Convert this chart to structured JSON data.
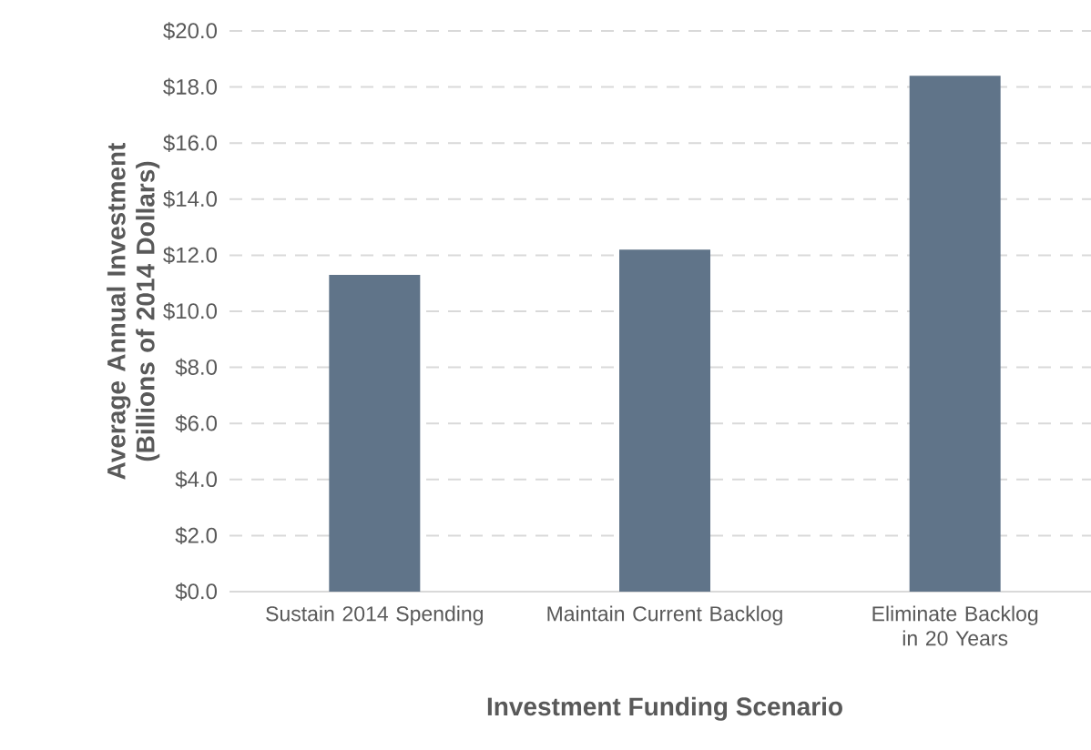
{
  "chart_data": {
    "type": "bar",
    "xlabel": "Investment Funding Scenario",
    "ylabel": "Average Annual Investment (Billions of 2014 Dollars)",
    "categories": [
      "Sustain 2014 Spending",
      "Maintain Current Backlog",
      "Eliminate Backlog in 20 Years"
    ],
    "values": [
      11.3,
      12.2,
      18.4
    ],
    "color": "#607489",
    "ylim": [
      0,
      20
    ],
    "yticks": [
      {
        "value": 0,
        "label": "$0.0"
      },
      {
        "value": 2,
        "label": "$2.0"
      },
      {
        "value": 4,
        "label": "$4.0"
      },
      {
        "value": 6,
        "label": "$6.0"
      },
      {
        "value": 8,
        "label": "$8.0"
      },
      {
        "value": 10,
        "label": "$10.0"
      },
      {
        "value": 12,
        "label": "$12.0"
      },
      {
        "value": 14,
        "label": "$14.0"
      },
      {
        "value": 16,
        "label": "$16.0"
      },
      {
        "value": 18,
        "label": "$18.0"
      },
      {
        "value": 20,
        "label": "$20.0"
      }
    ],
    "grid": "y"
  }
}
